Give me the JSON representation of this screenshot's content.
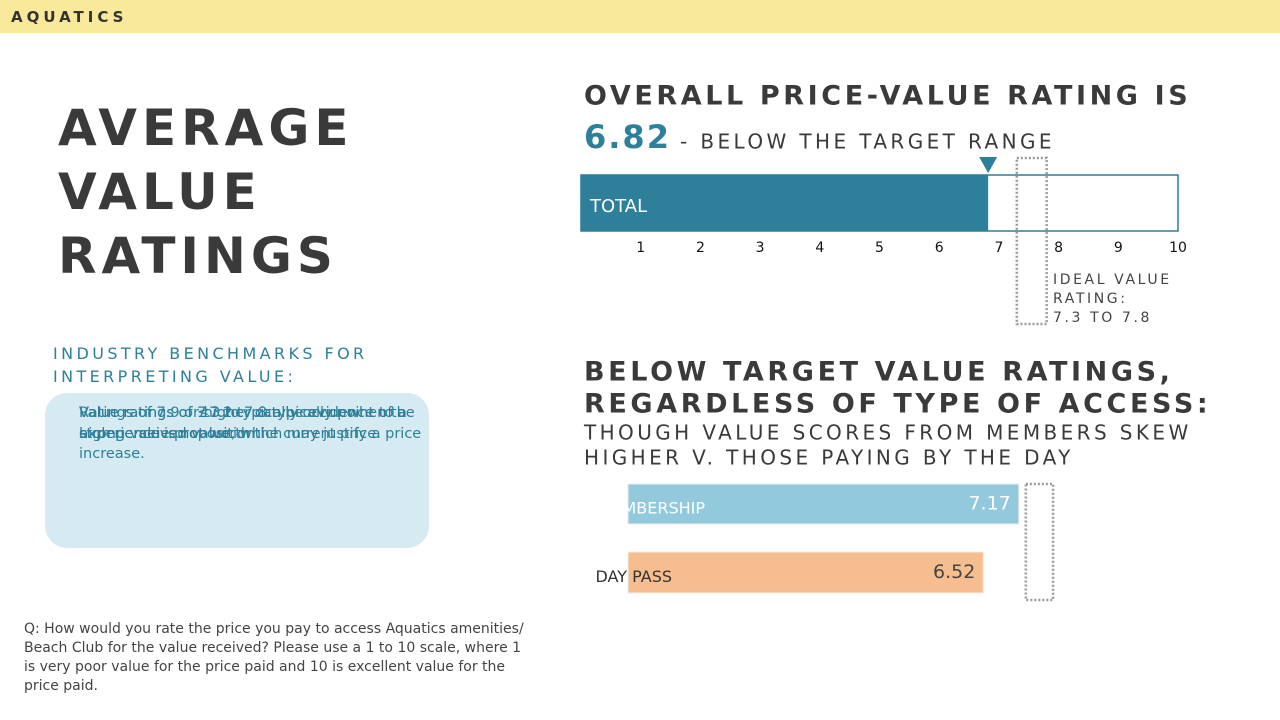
{
  "header": {
    "label": "AQUATICS"
  },
  "title_lines": [
    "AVERAGE",
    "VALUE",
    "RATINGS"
  ],
  "benchmarks": {
    "heading_lines": [
      "INDUSTRY BENCHMARKS FOR",
      "INTERPRETING VALUE:"
    ],
    "items": [
      "Value ratings of 7.3 to 7.8 typically point to a strong value proposition.",
      "Ratings of 7.9 or higher can be evidence of a high perceived value, which may justify a price increase.",
      "Value ratings of ≤7.2 typically occur when the experience is not worth the current price."
    ]
  },
  "question": "Q: How would you rate the price you pay to access Aquatics amenities/ Beach Club for the value received? Please use a 1 to 10 scale, where 1 is very poor value for the price paid and 10 is excellent value for the price paid.",
  "chart_data": [
    {
      "type": "bar",
      "orientation": "horizontal",
      "title": "OVERALL PRICE-VALUE RATING IS",
      "subtitle": "- BELOW THE TARGET RANGE",
      "categories": [
        "TOTAL"
      ],
      "values": [
        6.82
      ],
      "color": "#2e7f99",
      "xlim": [
        0,
        10
      ],
      "xticks": [
        1,
        2,
        3,
        4,
        5,
        6,
        7,
        8,
        9,
        10
      ],
      "ideal_range": [
        7.3,
        7.8
      ],
      "ideal_label_lines": [
        "IDEAL VALUE",
        "RATING:",
        "7.3 TO 7.8"
      ]
    },
    {
      "type": "bar",
      "orientation": "horizontal",
      "title_lines": [
        "BELOW TARGET VALUE RATINGS,",
        "REGARDLESS OF TYPE OF ACCESS:"
      ],
      "subtitle_lines": [
        "THOUGH VALUE SCORES FROM MEMBERS SKEW",
        "HIGHER V. THOSE PAYING BY THE DAY"
      ],
      "categories": [
        "MEMBERSHIP",
        "DAY PASS"
      ],
      "values": [
        7.17,
        6.52
      ],
      "colors": [
        "#92c9dc",
        "#f6be8e"
      ],
      "xlim": [
        0,
        10
      ],
      "ideal_range": [
        7.3,
        7.8
      ]
    }
  ]
}
